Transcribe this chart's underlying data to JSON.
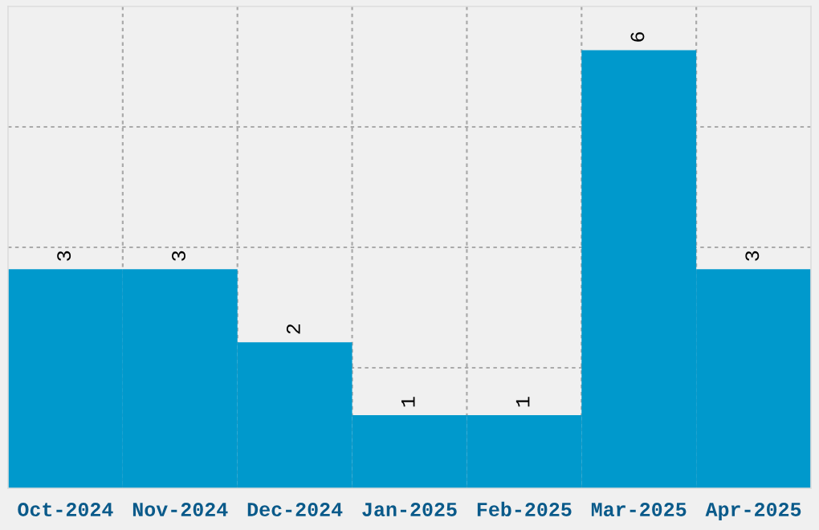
{
  "chart_data": {
    "type": "bar",
    "categories": [
      "Oct-2024",
      "Nov-2024",
      "Dec-2024",
      "Jan-2025",
      "Feb-2025",
      "Mar-2025",
      "Apr-2025"
    ],
    "values": [
      3,
      3,
      2,
      1,
      1,
      6,
      3
    ],
    "color": "#0099cc",
    "ylim": [
      0,
      6.6
    ],
    "yticks": [
      {
        "value": 1.65,
        "label": null
      },
      {
        "value": 3.3,
        "label": null
      },
      {
        "value": 4.95,
        "label": null
      }
    ],
    "tick_labels": "x",
    "grid": true,
    "data_labels": true
  }
}
